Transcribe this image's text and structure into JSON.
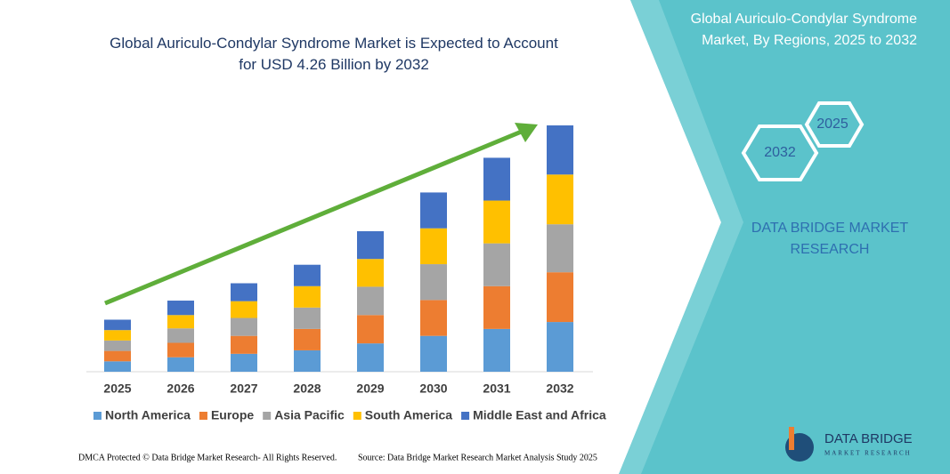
{
  "chart_data": {
    "type": "stacked_bar",
    "title": "Global Auriculo-Condylar Syndrome Market is Expected to Account for USD 4.26 Billion by 2032",
    "categories": [
      "2025",
      "2026",
      "2027",
      "2028",
      "2029",
      "2030",
      "2031",
      "2032"
    ],
    "series": [
      {
        "name": "North America",
        "color": "#5b9bd5",
        "values": [
          0.18,
          0.25,
          0.31,
          0.37,
          0.49,
          0.62,
          0.74,
          0.86
        ]
      },
      {
        "name": "Europe",
        "color": "#ed7d31",
        "values": [
          0.18,
          0.25,
          0.31,
          0.37,
          0.49,
          0.62,
          0.74,
          0.86
        ]
      },
      {
        "name": "Asia Pacific",
        "color": "#a5a5a5",
        "values": [
          0.18,
          0.25,
          0.31,
          0.37,
          0.49,
          0.62,
          0.74,
          0.83
        ]
      },
      {
        "name": "South America",
        "color": "#ffc000",
        "values": [
          0.18,
          0.23,
          0.29,
          0.37,
          0.48,
          0.62,
          0.74,
          0.86
        ]
      },
      {
        "name": "Middle East and Africa",
        "color": "#4472c4",
        "values": [
          0.18,
          0.25,
          0.31,
          0.37,
          0.48,
          0.62,
          0.74,
          0.85
        ]
      }
    ],
    "ylim": [
      0,
      4.26
    ]
  },
  "panel": {
    "title": "Global Auriculo-Condylar Syndrome Market, By Regions, 2025 to 2032",
    "hex_start": "2025",
    "hex_end": "2032",
    "brand": "DATA BRIDGE MARKET RESEARCH"
  },
  "logo": {
    "name": "DATA BRIDGE",
    "tagline": "MARKET RESEARCH"
  },
  "footer": {
    "left": "DMCA Protected © Data Bridge Market Research- All Rights Reserved.",
    "right": "Source: Data Bridge Market Research Market Analysis Study 2025"
  }
}
